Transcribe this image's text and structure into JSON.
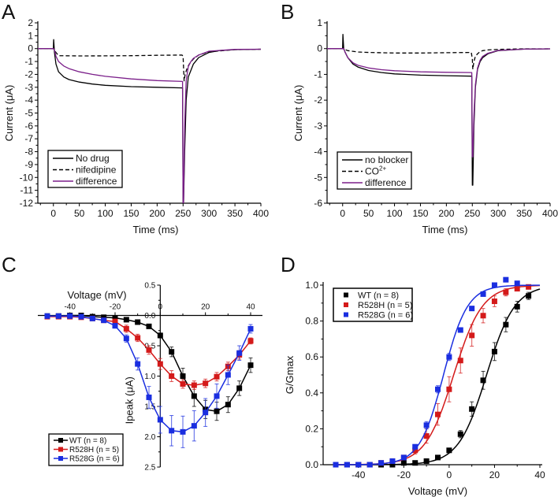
{
  "chart_data": [
    {
      "panel": "A",
      "type": "line",
      "xlabel": "Time (ms)",
      "ylabel": "Current (μA)",
      "xlim": [
        -30,
        400
      ],
      "ylim": [
        -12,
        2
      ],
      "xticks": [
        0,
        50,
        100,
        150,
        200,
        250,
        300,
        350,
        400
      ],
      "yticks": [
        2,
        1,
        0,
        -1,
        -2,
        -3,
        -4,
        -5,
        -6,
        -7,
        -8,
        -9,
        -10,
        -11,
        -12
      ],
      "legend_position": "bottom-left",
      "series": [
        {
          "name": "No drug",
          "style": "solid",
          "color": "#000000",
          "x": [
            -30,
            0,
            0.5,
            2,
            5,
            10,
            20,
            30,
            50,
            75,
            100,
            150,
            200,
            249,
            250,
            251,
            253,
            256,
            260,
            270,
            280,
            300,
            320,
            350,
            400
          ],
          "y": [
            0,
            0,
            0.7,
            -0.3,
            -1.2,
            -1.8,
            -2.2,
            -2.4,
            -2.6,
            -2.75,
            -2.85,
            -2.95,
            -3.0,
            -3.05,
            -12,
            -12,
            -8,
            -4,
            -2.2,
            -1.2,
            -0.7,
            -0.3,
            -0.15,
            -0.08,
            -0.05
          ]
        },
        {
          "name": "nifedipine",
          "style": "dashed",
          "color": "#000000",
          "x": [
            -30,
            0,
            5,
            10,
            50,
            100,
            150,
            200,
            248,
            250,
            252,
            254,
            258,
            262,
            270,
            280,
            300,
            350,
            400
          ],
          "y": [
            0,
            0,
            -0.3,
            -0.55,
            -0.57,
            -0.56,
            -0.55,
            -0.52,
            -0.5,
            -0.6,
            -2.5,
            -2.0,
            -1.5,
            -1.2,
            -0.8,
            -0.5,
            -0.25,
            -0.08,
            -0.05
          ]
        },
        {
          "name": "difference",
          "style": "solid",
          "color": "#7b1f8a",
          "x": [
            -30,
            0,
            2,
            5,
            10,
            20,
            30,
            50,
            75,
            100,
            150,
            200,
            249,
            250,
            251,
            253,
            256,
            260,
            265,
            270,
            280,
            300,
            350,
            400
          ],
          "y": [
            0,
            0,
            -0.1,
            -0.6,
            -1.0,
            -1.35,
            -1.55,
            -1.8,
            -2.0,
            -2.15,
            -2.35,
            -2.48,
            -2.55,
            -12,
            -12,
            -6,
            -2.5,
            -1.4,
            -1.0,
            -0.75,
            -0.5,
            -0.2,
            -0.06,
            -0.05
          ]
        }
      ]
    },
    {
      "panel": "B",
      "type": "line",
      "xlabel": "Time (ms)",
      "ylabel": "Current (μA)",
      "xlim": [
        -30,
        400
      ],
      "ylim": [
        -6,
        1
      ],
      "xticks": [
        0,
        50,
        100,
        150,
        200,
        250,
        300,
        350,
        400
      ],
      "yticks": [
        1,
        0,
        -1,
        -2,
        -3,
        -4,
        -5,
        -6
      ],
      "legend_position": "bottom-left",
      "series": [
        {
          "name": "no blocker",
          "style": "solid",
          "color": "#000000",
          "x": [
            -30,
            0,
            0.5,
            2,
            5,
            10,
            20,
            30,
            50,
            75,
            100,
            150,
            200,
            249,
            250,
            251,
            253,
            256,
            260,
            265,
            270,
            280,
            300,
            350,
            400
          ],
          "y": [
            0,
            0,
            0.55,
            0.0,
            -0.15,
            -0.35,
            -0.6,
            -0.72,
            -0.85,
            -0.93,
            -0.98,
            -1.03,
            -1.05,
            -1.07,
            -5.3,
            -5.3,
            -3.0,
            -1.5,
            -0.8,
            -0.5,
            -0.35,
            -0.2,
            -0.08,
            -0.02,
            -0.01
          ]
        },
        {
          "name": "CO²⁺",
          "legend_label_base": "CO",
          "legend_label_sup": "2+",
          "style": "dashed",
          "color": "#000000",
          "x": [
            -30,
            0,
            10,
            30,
            50,
            100,
            150,
            200,
            248,
            250,
            251,
            253,
            256,
            260,
            265,
            270,
            280,
            300,
            350,
            400
          ],
          "y": [
            0,
            0,
            -0.08,
            -0.13,
            -0.15,
            -0.17,
            -0.17,
            -0.16,
            -0.15,
            -0.4,
            -0.8,
            -0.5,
            -0.3,
            -0.2,
            -0.12,
            -0.08,
            -0.05,
            -0.03,
            -0.01,
            -0.01
          ]
        },
        {
          "name": "difference",
          "style": "solid",
          "color": "#7b1f8a",
          "x": [
            -30,
            0,
            2,
            5,
            10,
            20,
            30,
            50,
            75,
            100,
            150,
            200,
            249,
            250,
            251,
            253,
            256,
            260,
            265,
            270,
            280,
            300,
            350,
            400
          ],
          "y": [
            0,
            0,
            0.0,
            -0.15,
            -0.35,
            -0.55,
            -0.65,
            -0.75,
            -0.82,
            -0.86,
            -0.9,
            -0.92,
            -0.93,
            -4.2,
            -4.2,
            -2.6,
            -1.4,
            -0.75,
            -0.45,
            -0.3,
            -0.18,
            -0.07,
            -0.02,
            -0.01
          ]
        }
      ]
    },
    {
      "panel": "C",
      "type": "line",
      "xlabel": "Voltage (mV)",
      "ylabel": "Ipeak (μA)",
      "xlim": [
        -52,
        43
      ],
      "ylim": [
        -2.5,
        0.5
      ],
      "xticks": [
        -40,
        -20,
        0,
        20,
        40
      ],
      "yticks": [
        0.5,
        0.0,
        -0.5,
        -1.0,
        -1.5,
        -2.0,
        -2.5
      ],
      "ytick_labels": [
        "0.5",
        "0.0",
        "0.5",
        "1.0",
        "1.5",
        "2.0",
        "2.5"
      ],
      "ytick_labels_full": [
        "0.5",
        "0.0",
        "-0.5",
        "-1.0",
        "-1.5",
        "-2.0",
        "-2.5"
      ],
      "legend_position": "bottom-left",
      "x": [
        -50,
        -45,
        -40,
        -35,
        -30,
        -25,
        -20,
        -15,
        -10,
        -5,
        0,
        5,
        10,
        15,
        20,
        25,
        30,
        35,
        40
      ],
      "series": [
        {
          "name": "WT (n = 8)",
          "color": "#000000",
          "y": [
            -0.01,
            -0.01,
            -0.0,
            0.0,
            -0.02,
            -0.03,
            -0.04,
            -0.07,
            -0.11,
            -0.18,
            -0.33,
            -0.6,
            -1.0,
            -1.33,
            -1.55,
            -1.58,
            -1.47,
            -1.2,
            -0.82
          ],
          "err": [
            0.02,
            0.02,
            0.02,
            0.02,
            0.02,
            0.02,
            0.02,
            0.02,
            0.03,
            0.03,
            0.04,
            0.08,
            0.13,
            0.17,
            0.15,
            0.15,
            0.13,
            0.12,
            0.12
          ]
        },
        {
          "name": "R528H (n = 5)",
          "color": "#d41a1a",
          "y": [
            -0.02,
            -0.02,
            -0.02,
            -0.03,
            -0.05,
            -0.08,
            -0.1,
            -0.22,
            -0.37,
            -0.57,
            -0.8,
            -1.0,
            -1.13,
            -1.15,
            -1.12,
            -1.01,
            -0.84,
            -0.65,
            -0.42
          ],
          "err": [
            0.02,
            0.02,
            0.02,
            0.02,
            0.02,
            0.03,
            0.04,
            0.06,
            0.06,
            0.07,
            0.09,
            0.09,
            0.07,
            0.07,
            0.07,
            0.07,
            0.07,
            0.07,
            0.05
          ]
        },
        {
          "name": "R528G (n = 6)",
          "color": "#1a2ee0",
          "y": [
            -0.01,
            -0.01,
            -0.01,
            -0.02,
            -0.05,
            -0.08,
            -0.17,
            -0.38,
            -0.8,
            -1.35,
            -1.72,
            -1.9,
            -1.92,
            -1.82,
            -1.6,
            -1.33,
            -0.98,
            -0.62,
            -0.22
          ],
          "err": [
            0.02,
            0.02,
            0.02,
            0.02,
            0.02,
            0.03,
            0.04,
            0.06,
            0.1,
            0.18,
            0.22,
            0.25,
            0.26,
            0.25,
            0.23,
            0.2,
            0.16,
            0.12,
            0.07
          ]
        }
      ]
    },
    {
      "panel": "D",
      "type": "scatter",
      "xlabel": "Voltage (mV)",
      "ylabel": "G/Gmax",
      "xlim": [
        -55,
        42
      ],
      "ylim": [
        0.0,
        1.0
      ],
      "xticks": [
        -40,
        -20,
        0,
        20,
        40
      ],
      "yticks": [
        0.0,
        0.2,
        0.4,
        0.6,
        0.8,
        1.0
      ],
      "legend_position": "top-left",
      "fit": "boltzmann",
      "x": [
        -50,
        -45,
        -40,
        -35,
        -30,
        -25,
        -20,
        -15,
        -10,
        -5,
        0,
        5,
        10,
        15,
        20,
        25,
        30,
        35
      ],
      "series": [
        {
          "name": "WT (n = 8)",
          "color": "#000000",
          "fit_v_half": 16.5,
          "fit_k": 6.2,
          "y": [
            0.0,
            0.0,
            0.0,
            0.0,
            0.0,
            0.0,
            0.01,
            0.01,
            0.02,
            0.04,
            0.08,
            0.17,
            0.31,
            0.47,
            0.63,
            0.78,
            0.88,
            0.94
          ],
          "err": [
            0.0,
            0.0,
            0.0,
            0.0,
            0.0,
            0.0,
            0.0,
            0.01,
            0.01,
            0.01,
            0.01,
            0.02,
            0.04,
            0.05,
            0.05,
            0.04,
            0.03,
            0.02
          ]
        },
        {
          "name": "R528H (n = 5)",
          "color": "#d41a1a",
          "fit_v_half": 2.0,
          "fit_k": 6.3,
          "y": [
            0.0,
            0.0,
            0.0,
            0.0,
            0.01,
            0.02,
            0.04,
            0.08,
            0.16,
            0.28,
            0.42,
            0.58,
            0.72,
            0.83,
            0.91,
            0.96,
            0.98,
            0.99
          ],
          "err": [
            0.0,
            0.0,
            0.0,
            0.0,
            0.0,
            0.01,
            0.01,
            0.02,
            0.04,
            0.06,
            0.07,
            0.07,
            0.06,
            0.04,
            0.03,
            0.02,
            0.01,
            0.01
          ]
        },
        {
          "name": "R528G (n = 6)",
          "color": "#1a2ee0",
          "fit_v_half": -2.5,
          "fit_k": 5.3,
          "y": [
            0.0,
            0.0,
            0.0,
            0.0,
            0.01,
            0.02,
            0.04,
            0.1,
            0.22,
            0.42,
            0.6,
            0.75,
            0.87,
            0.95,
            1.0,
            1.03,
            1.01,
            null
          ],
          "err": [
            0.0,
            0.0,
            0.0,
            0.0,
            0.0,
            0.01,
            0.01,
            0.01,
            0.02,
            0.02,
            0.02,
            0.01,
            0.01,
            0.01,
            0.0,
            0.0,
            0.0,
            null
          ]
        }
      ]
    }
  ]
}
